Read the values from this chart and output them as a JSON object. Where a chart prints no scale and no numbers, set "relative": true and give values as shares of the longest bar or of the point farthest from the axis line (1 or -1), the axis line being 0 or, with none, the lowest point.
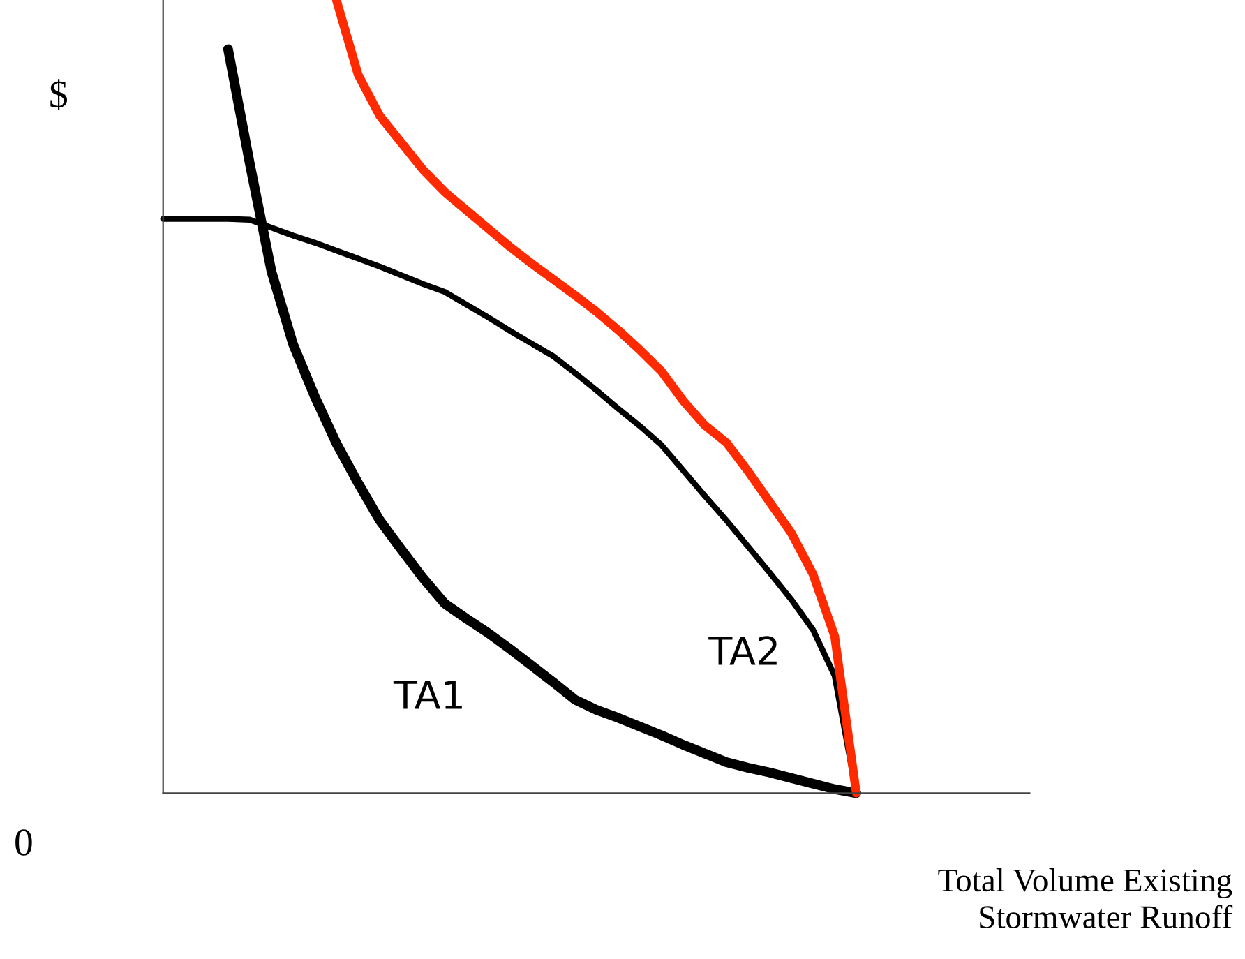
{
  "chart_data": {
    "type": "line",
    "relative": true,
    "ylabel": "$",
    "xlabel": "Total Volume Existing\nStormwater Runoff",
    "marker": "none",
    "line_style": "solid",
    "categories": [
      null,
      null,
      null,
      null,
      null,
      null,
      null,
      null,
      null,
      null,
      null,
      null,
      null,
      null,
      null,
      null,
      null,
      null,
      null,
      null,
      null,
      null,
      null,
      null,
      null,
      null,
      null,
      null,
      null,
      null,
      null,
      null,
      null,
      null,
      null,
      null,
      null,
      null,
      null,
      null,
      null
    ],
    "series": [
      {
        "color": "#000000",
        "values": [
          null,
          null,
          null,
          0.938,
          0.794,
          0.658,
          0.566,
          0.5,
          0.441,
          0.391,
          0.344,
          0.307,
          0.271,
          0.239,
          0.22,
          0.202,
          0.182,
          0.161,
          0.14,
          0.118,
          0.105,
          0.095,
          0.084,
          0.073,
          0.061,
          0.05,
          0.039,
          0.032,
          0.026,
          0.019,
          0.012,
          0.005,
          0,
          null,
          null,
          null,
          null,
          null,
          null,
          null,
          null
        ]
      },
      {
        "color": "#000000",
        "values": [
          0.724,
          0.724,
          0.724,
          0.724,
          0.723,
          0.713,
          0.703,
          0.694,
          0.684,
          0.674,
          0.664,
          0.653,
          0.642,
          0.632,
          0.616,
          0.6,
          0.583,
          0.567,
          0.551,
          0.53,
          0.508,
          0.485,
          0.463,
          0.439,
          0.407,
          0.375,
          0.344,
          0.311,
          0.278,
          0.244,
          0.206,
          0.148,
          0,
          null,
          null,
          null,
          null,
          null,
          null,
          null,
          null
        ]
      },
      {
        "color": "#ff2a00",
        "values": [
          null,
          null,
          null,
          null,
          null,
          null,
          null,
          null,
          1,
          0.906,
          0.854,
          0.82,
          0.786,
          0.758,
          0.735,
          0.712,
          0.689,
          0.668,
          0.648,
          0.628,
          0.607,
          0.584,
          0.559,
          0.532,
          0.495,
          0.464,
          0.442,
          0.406,
          0.367,
          0.328,
          0.276,
          0.198,
          0,
          null,
          null,
          null,
          null,
          null,
          null,
          null,
          null
        ]
      }
    ],
    "annotations": [
      "TA1",
      "TA2",
      "0"
    ]
  }
}
